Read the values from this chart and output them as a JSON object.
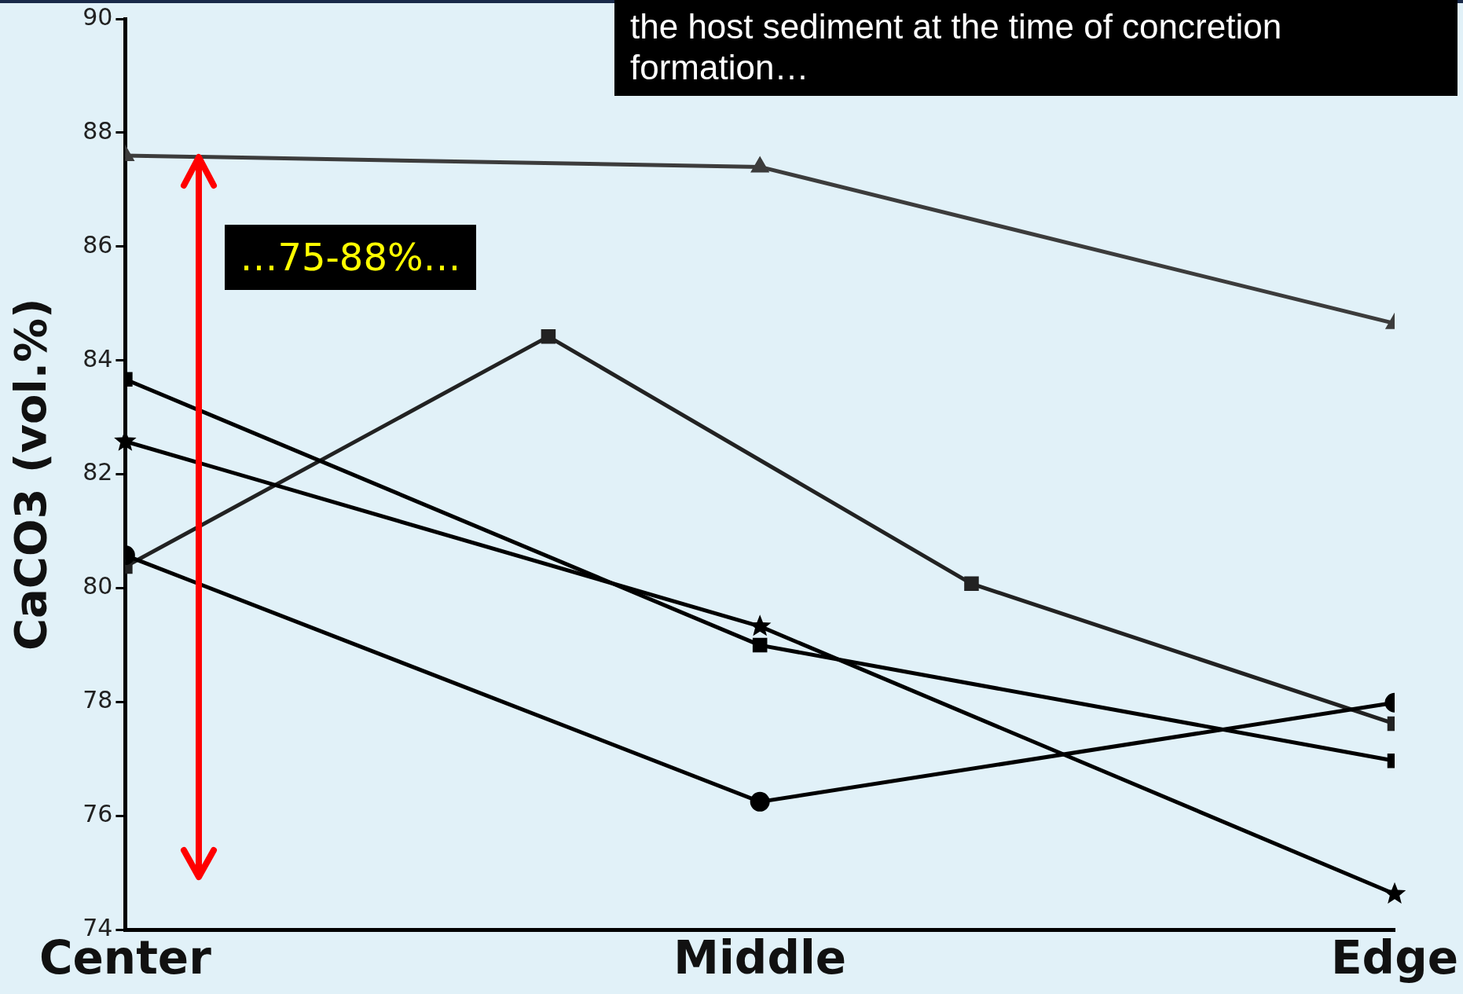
{
  "chart_data": {
    "type": "line",
    "ylabel": "CaCO3 (vol.%)",
    "annotations": [
      "the host sediment at the time of concretion formation…",
      "…75-88%…"
    ],
    "categories": [
      "Center",
      null,
      null,
      "Middle",
      null,
      null,
      "Edge"
    ],
    "ylim": [
      74,
      90
    ],
    "yticks": [
      74,
      76,
      78,
      80,
      82,
      84,
      86,
      88,
      90
    ],
    "grid": false,
    "legend": false,
    "series": [
      {
        "color": "#3c3c3c",
        "marker": "triangle",
        "values": [
          87.6,
          null,
          null,
          87.4,
          null,
          null,
          84.65
        ]
      },
      {
        "color": "#000000",
        "marker": "square",
        "values": [
          83.67,
          null,
          null,
          79.0,
          null,
          null,
          76.97
        ]
      },
      {
        "color": "#000000",
        "marker": "star",
        "values": [
          82.58,
          null,
          null,
          79.33,
          null,
          null,
          74.63
        ]
      },
      {
        "color": "#000000",
        "marker": "circle",
        "values": [
          80.58,
          null,
          null,
          76.25,
          null,
          null,
          77.99
        ]
      },
      {
        "color": "#222222",
        "marker": "square",
        "values": [
          80.38,
          null,
          84.42,
          null,
          80.08,
          null,
          77.62
        ]
      }
    ]
  }
}
